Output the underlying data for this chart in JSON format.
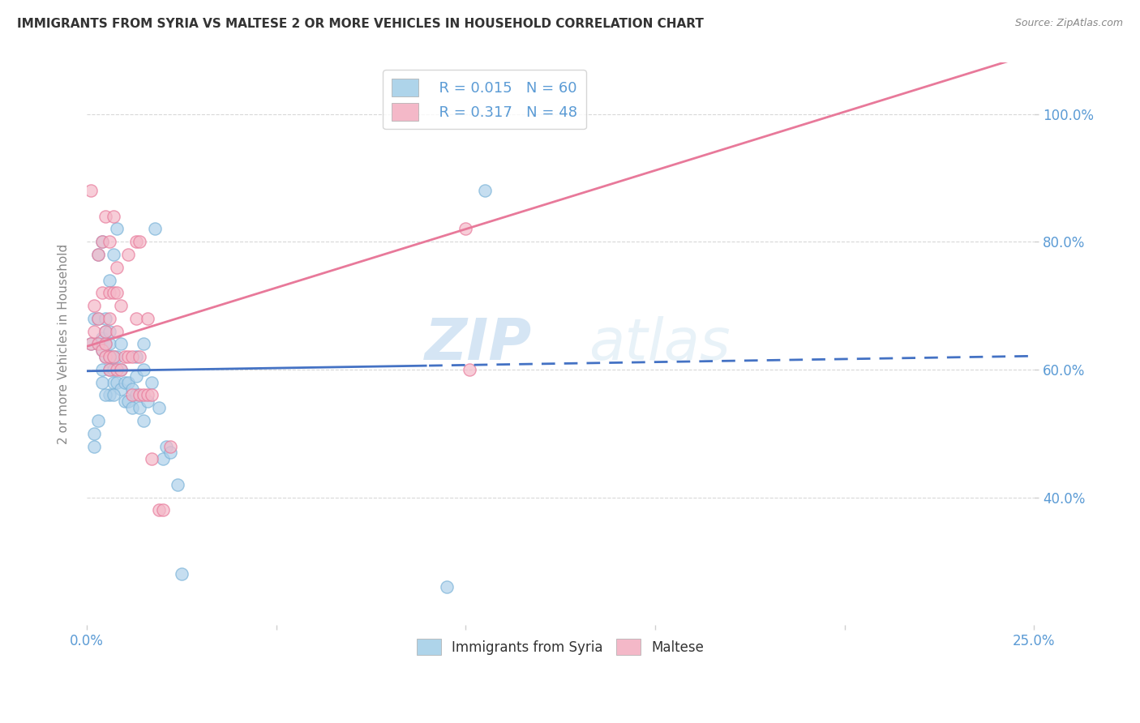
{
  "title": "IMMIGRANTS FROM SYRIA VS MALTESE 2 OR MORE VEHICLES IN HOUSEHOLD CORRELATION CHART",
  "source": "Source: ZipAtlas.com",
  "ylabel": "2 or more Vehicles in Household",
  "xlim": [
    0.0,
    0.25
  ],
  "ylim": [
    0.2,
    1.08
  ],
  "ytick_vals": [
    0.4,
    0.6,
    0.8,
    1.0
  ],
  "ytick_labels": [
    "40.0%",
    "60.0%",
    "80.0%",
    "100.0%"
  ],
  "xtick_vals": [
    0.0,
    0.05,
    0.1,
    0.15,
    0.2,
    0.25
  ],
  "xtick_labels": [
    "0.0%",
    "",
    "",
    "",
    "",
    "25.0%"
  ],
  "tick_color": "#5b9bd5",
  "watermark": "ZIPatlas",
  "syria_color": "#7ab3d8",
  "syria_fill": "#afd0ea",
  "maltese_color": "#e8799a",
  "maltese_fill": "#f4b8c8",
  "syria_line_color": "#4472c4",
  "maltese_line_color": "#e8799a",
  "grid_color": "#d8d8d8",
  "syria_N": 60,
  "maltese_N": 48,
  "syria_R": 0.015,
  "maltese_R": 0.317,
  "legend_syria_color": "#aed4ea",
  "legend_maltese_color": "#f4b8c8",
  "syria_x": [
    0.001,
    0.002,
    0.002,
    0.003,
    0.003,
    0.003,
    0.004,
    0.004,
    0.004,
    0.004,
    0.005,
    0.005,
    0.005,
    0.005,
    0.006,
    0.006,
    0.006,
    0.006,
    0.006,
    0.006,
    0.007,
    0.007,
    0.007,
    0.007,
    0.008,
    0.008,
    0.008,
    0.009,
    0.009,
    0.009,
    0.01,
    0.01,
    0.011,
    0.011,
    0.012,
    0.012,
    0.013,
    0.013,
    0.013,
    0.014,
    0.015,
    0.015,
    0.015,
    0.016,
    0.017,
    0.018,
    0.019,
    0.02,
    0.021,
    0.022,
    0.024,
    0.025,
    0.002,
    0.003,
    0.004,
    0.005,
    0.006,
    0.007,
    0.105,
    0.095
  ],
  "syria_y": [
    0.64,
    0.5,
    0.68,
    0.64,
    0.68,
    0.78,
    0.6,
    0.63,
    0.65,
    0.8,
    0.62,
    0.64,
    0.66,
    0.68,
    0.56,
    0.6,
    0.62,
    0.64,
    0.66,
    0.74,
    0.58,
    0.6,
    0.62,
    0.78,
    0.58,
    0.62,
    0.82,
    0.57,
    0.6,
    0.64,
    0.55,
    0.58,
    0.55,
    0.58,
    0.54,
    0.57,
    0.56,
    0.59,
    0.62,
    0.54,
    0.6,
    0.64,
    0.52,
    0.55,
    0.58,
    0.82,
    0.54,
    0.46,
    0.48,
    0.47,
    0.42,
    0.28,
    0.48,
    0.52,
    0.58,
    0.56,
    0.62,
    0.56,
    0.88,
    0.26
  ],
  "maltese_x": [
    0.001,
    0.001,
    0.002,
    0.002,
    0.003,
    0.003,
    0.003,
    0.004,
    0.004,
    0.004,
    0.005,
    0.005,
    0.005,
    0.005,
    0.006,
    0.006,
    0.006,
    0.006,
    0.006,
    0.007,
    0.007,
    0.007,
    0.008,
    0.008,
    0.008,
    0.008,
    0.009,
    0.009,
    0.01,
    0.011,
    0.011,
    0.012,
    0.012,
    0.013,
    0.013,
    0.014,
    0.014,
    0.014,
    0.015,
    0.016,
    0.016,
    0.017,
    0.017,
    0.019,
    0.02,
    0.022,
    0.1,
    0.101
  ],
  "maltese_y": [
    0.64,
    0.88,
    0.7,
    0.66,
    0.64,
    0.68,
    0.78,
    0.63,
    0.72,
    0.8,
    0.62,
    0.64,
    0.66,
    0.84,
    0.6,
    0.62,
    0.68,
    0.72,
    0.8,
    0.62,
    0.72,
    0.84,
    0.6,
    0.66,
    0.72,
    0.76,
    0.6,
    0.7,
    0.62,
    0.62,
    0.78,
    0.56,
    0.62,
    0.68,
    0.8,
    0.56,
    0.62,
    0.8,
    0.56,
    0.56,
    0.68,
    0.56,
    0.46,
    0.38,
    0.38,
    0.48,
    0.82,
    0.6
  ]
}
